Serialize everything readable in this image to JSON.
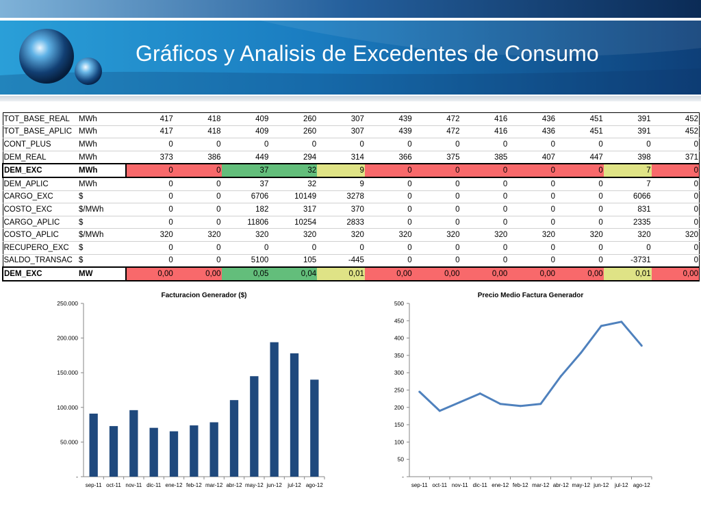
{
  "slide": {
    "title": "Gráficos y Analisis de Excedentes de Consumo"
  },
  "table": {
    "rows": [
      {
        "name": "TOT_BASE_REAL",
        "unit": "MWh",
        "values": [
          "417",
          "418",
          "409",
          "260",
          "307",
          "439",
          "472",
          "416",
          "436",
          "451",
          "391",
          "452"
        ]
      },
      {
        "name": "TOT_BASE_APLIC",
        "unit": "MWh",
        "values": [
          "417",
          "418",
          "409",
          "260",
          "307",
          "439",
          "472",
          "416",
          "436",
          "451",
          "391",
          "452"
        ]
      },
      {
        "name": "CONT_PLUS",
        "unit": "MWh",
        "values": [
          "0",
          "0",
          "0",
          "0",
          "0",
          "0",
          "0",
          "0",
          "0",
          "0",
          "0",
          "0"
        ]
      },
      {
        "name": "DEM_REAL",
        "unit": "MWh",
        "values": [
          "373",
          "386",
          "449",
          "294",
          "314",
          "366",
          "375",
          "385",
          "407",
          "447",
          "398",
          "371"
        ]
      },
      {
        "name": "DEM_EXC",
        "unit": "MWh",
        "values": [
          "0",
          "0",
          "37",
          "32",
          "9",
          "0",
          "0",
          "0",
          "0",
          "0",
          "7",
          "0"
        ]
      },
      {
        "name": "DEM_APLIC",
        "unit": "MWh",
        "values": [
          "0",
          "0",
          "37",
          "32",
          "9",
          "0",
          "0",
          "0",
          "0",
          "0",
          "7",
          "0"
        ]
      },
      {
        "name": "CARGO_EXC",
        "unit": "$",
        "values": [
          "0",
          "0",
          "6706",
          "10149",
          "3278",
          "0",
          "0",
          "0",
          "0",
          "0",
          "6066",
          "0"
        ]
      },
      {
        "name": "COSTO_EXC",
        "unit": "$/MWh",
        "values": [
          "0",
          "0",
          "182",
          "317",
          "370",
          "0",
          "0",
          "0",
          "0",
          "0",
          "831",
          "0"
        ]
      },
      {
        "name": "CARGO_APLIC",
        "unit": "$",
        "values": [
          "0",
          "0",
          "11806",
          "10254",
          "2833",
          "0",
          "0",
          "0",
          "0",
          "0",
          "2335",
          "0"
        ]
      },
      {
        "name": "COSTO_APLIC",
        "unit": "$/MWh",
        "values": [
          "320",
          "320",
          "320",
          "320",
          "320",
          "320",
          "320",
          "320",
          "320",
          "320",
          "320",
          "320"
        ]
      },
      {
        "name": "RECUPERO_EXC",
        "unit": "$",
        "values": [
          "0",
          "0",
          "0",
          "0",
          "0",
          "0",
          "0",
          "0",
          "0",
          "0",
          "0",
          "0"
        ]
      },
      {
        "name": "SALDO_TRANSAC",
        "unit": "$",
        "values": [
          "0",
          "0",
          "5100",
          "105",
          "-445",
          "0",
          "0",
          "0",
          "0",
          "0",
          "-3731",
          "0"
        ]
      },
      {
        "name": "DEM_EXC",
        "unit": "MW",
        "values": [
          "0,00",
          "0,00",
          "0,05",
          "0,04",
          "0,01",
          "0,00",
          "0,00",
          "0,00",
          "0,00",
          "0,00",
          "0,01",
          "0,00"
        ]
      }
    ],
    "highlight_colors": {
      "red": "#f8696b",
      "green": "#63be7b",
      "yellow": "#dfe386"
    },
    "highlight_pattern": [
      "red",
      "red",
      "green",
      "green",
      "yellow",
      "red",
      "red",
      "red",
      "red",
      "red",
      "yellow",
      "red"
    ]
  },
  "chart_data": [
    {
      "type": "bar",
      "title": "Facturacion Generador ($)",
      "categories": [
        "sep-11",
        "oct-11",
        "nov-11",
        "dic-11",
        "ene-12",
        "feb-12",
        "mar-12",
        "abr-12",
        "may-12",
        "jun-12",
        "jul-12",
        "ago-12"
      ],
      "values": [
        91000,
        73000,
        96000,
        70500,
        65500,
        74000,
        78500,
        110500,
        145000,
        194000,
        178000,
        140000
      ],
      "ylim": [
        0,
        250000
      ],
      "yticks": [
        "-",
        "50.000",
        "100.000",
        "150.000",
        "200.000",
        "250.000"
      ],
      "color": "#1f497d",
      "grid": false
    },
    {
      "type": "line",
      "title": "Precio Medio Factura Generador",
      "categories": [
        "sep-11",
        "oct-11",
        "nov-11",
        "dic-11",
        "ene-12",
        "feb-12",
        "mar-12",
        "abr-12",
        "may-12",
        "jun-12",
        "jul-12",
        "ago-12"
      ],
      "values": [
        245,
        190,
        215,
        240,
        210,
        204,
        210,
        290,
        358,
        435,
        447,
        378
      ],
      "ylim": [
        0,
        500
      ],
      "yticks": [
        "-",
        "50",
        "100",
        "150",
        "200",
        "250",
        "300",
        "350",
        "400",
        "450",
        "500"
      ],
      "color": "#4f81bd",
      "grid": false
    }
  ]
}
